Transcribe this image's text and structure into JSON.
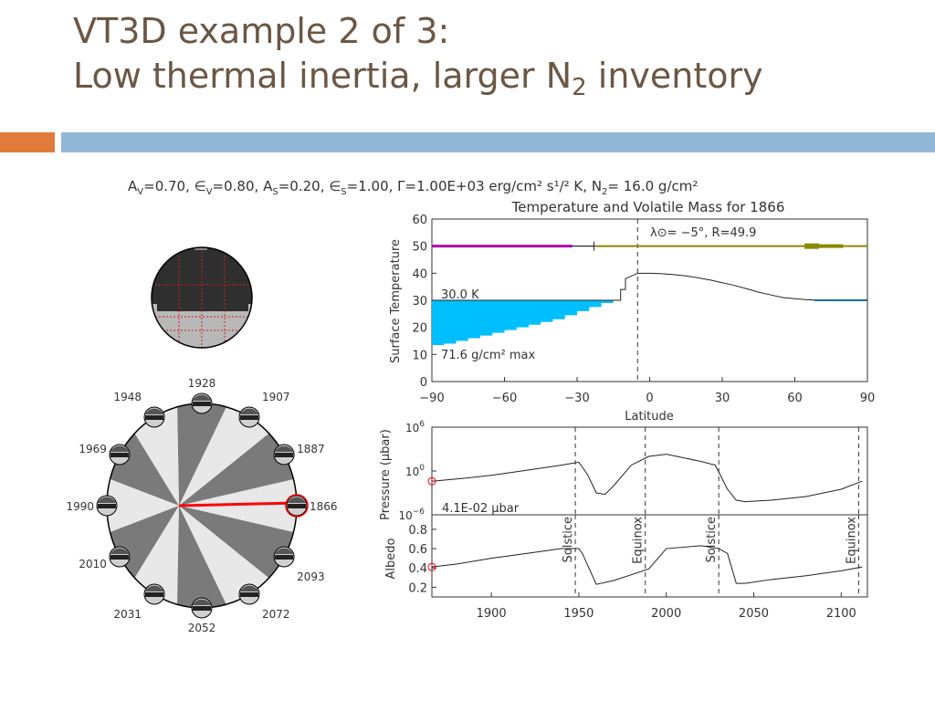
{
  "slide": {
    "title_line1": "VT3D example 2 of 3:",
    "title_line2_pre": "Low thermal inertia, larger N",
    "title_line2_sub": "2",
    "title_line2_post": " inventory"
  },
  "figure": {
    "params": {
      "a_v": "0.70",
      "eps_v": "0.80",
      "a_s": "0.20",
      "eps_s": "1.00",
      "gamma": "1.00E+03",
      "gamma_unit": "erg/cm² s¹/² K",
      "n2": "16.0 g/cm²"
    },
    "orbit_years": [
      1866,
      1887,
      1907,
      1928,
      1948,
      1969,
      1990,
      2010,
      2031,
      2052,
      2072,
      2093
    ],
    "current_year": 1866,
    "colors": {
      "ice": "#00bfff",
      "pink_line": "#b000b0",
      "olive_line": "#8a8a00",
      "marker_red": "#ff0000",
      "disk_light": "#e8e8e8",
      "disk_dark": "#7a7a7a"
    }
  },
  "chart_data": [
    {
      "type": "line",
      "title": "Temperature and Volatile Mass for 1866",
      "xlabel": "Latitude",
      "ylabel": "Surface Temperature",
      "xlim": [
        -90,
        90
      ],
      "ylim": [
        0,
        60
      ],
      "xticks": [
        -90,
        -60,
        -30,
        0,
        30,
        60,
        90
      ],
      "yticks": [
        0,
        10,
        20,
        30,
        40,
        50,
        60
      ],
      "annotation_top": "λ⊙= −5°, R=49.9",
      "label_temp": "30.0 K",
      "label_mass": "71.6 g/cm² max",
      "subsolar_lat": -5,
      "temperature": {
        "lat": [
          -90,
          -12,
          -12,
          -10,
          -10,
          -5,
          0,
          5,
          10,
          15,
          20,
          25,
          30,
          35,
          40,
          45,
          50,
          55,
          60,
          65,
          70,
          75,
          80,
          85,
          90
        ],
        "temp": [
          30,
          30,
          34,
          34,
          38,
          40,
          40,
          39.8,
          39.5,
          39,
          38.3,
          37.5,
          36.5,
          35.5,
          34.3,
          33,
          32,
          31,
          30.6,
          30.2,
          30,
          30,
          30,
          30,
          30
        ]
      },
      "ice_mass": {
        "lat": [
          -90,
          -85,
          -80,
          -75,
          -70,
          -65,
          -60,
          -55,
          -50,
          -45,
          -40,
          -35,
          -30,
          -25,
          -20,
          -15,
          -12
        ],
        "top": [
          30,
          30,
          30,
          30,
          30,
          30,
          30,
          30,
          30,
          30,
          30,
          30,
          30,
          30,
          30,
          30,
          30
        ],
        "bottom": [
          13,
          13.5,
          14,
          15,
          16,
          17,
          18,
          19,
          20,
          21,
          22,
          23,
          24.5,
          26,
          27.5,
          29,
          30
        ]
      },
      "band_y": 50
    },
    {
      "type": "line",
      "ylabel": "Pressure (μbar)",
      "yscale": "log",
      "ylim_exp": [
        -6,
        6
      ],
      "yticks_exp": [
        -6,
        0,
        6
      ],
      "xlim": [
        1866,
        2115
      ],
      "label": "4.1E-02 μbar",
      "x": [
        1866,
        1880,
        1900,
        1920,
        1940,
        1950,
        1955,
        1960,
        1965,
        1970,
        1980,
        1990,
        2000,
        2010,
        2020,
        2028,
        2035,
        2040,
        2045,
        2060,
        2080,
        2100,
        2112
      ],
      "log_p": [
        -1.4,
        -1.1,
        -0.6,
        0.1,
        0.8,
        1.2,
        -0.5,
        -3,
        -3.2,
        -2,
        0.8,
        2,
        2.3,
        1.8,
        1.3,
        0.8,
        -2.5,
        -4,
        -4.2,
        -4,
        -3.5,
        -2.5,
        -1.4
      ]
    },
    {
      "type": "line",
      "ylabel": "Albedo",
      "xlim": [
        1866,
        2115
      ],
      "ylim": [
        0.1,
        0.95
      ],
      "yticks": [
        0.2,
        0.4,
        0.6,
        0.8
      ],
      "xticks": [
        1900,
        1950,
        2000,
        2050,
        2100
      ],
      "events": [
        {
          "x": 1948,
          "label": "Solstice"
        },
        {
          "x": 1988,
          "label": "Equinox"
        },
        {
          "x": 2030,
          "label": "Solstice"
        },
        {
          "x": 2110,
          "label": "Equinox"
        }
      ],
      "x": [
        1866,
        1880,
        1900,
        1920,
        1940,
        1950,
        1952,
        1960,
        1970,
        1990,
        2000,
        2020,
        2030,
        2035,
        2040,
        2045,
        2060,
        2080,
        2100,
        2112
      ],
      "albedo": [
        0.41,
        0.44,
        0.5,
        0.55,
        0.6,
        0.6,
        0.55,
        0.23,
        0.27,
        0.39,
        0.6,
        0.63,
        0.6,
        0.55,
        0.24,
        0.24,
        0.28,
        0.32,
        0.37,
        0.41
      ]
    }
  ]
}
